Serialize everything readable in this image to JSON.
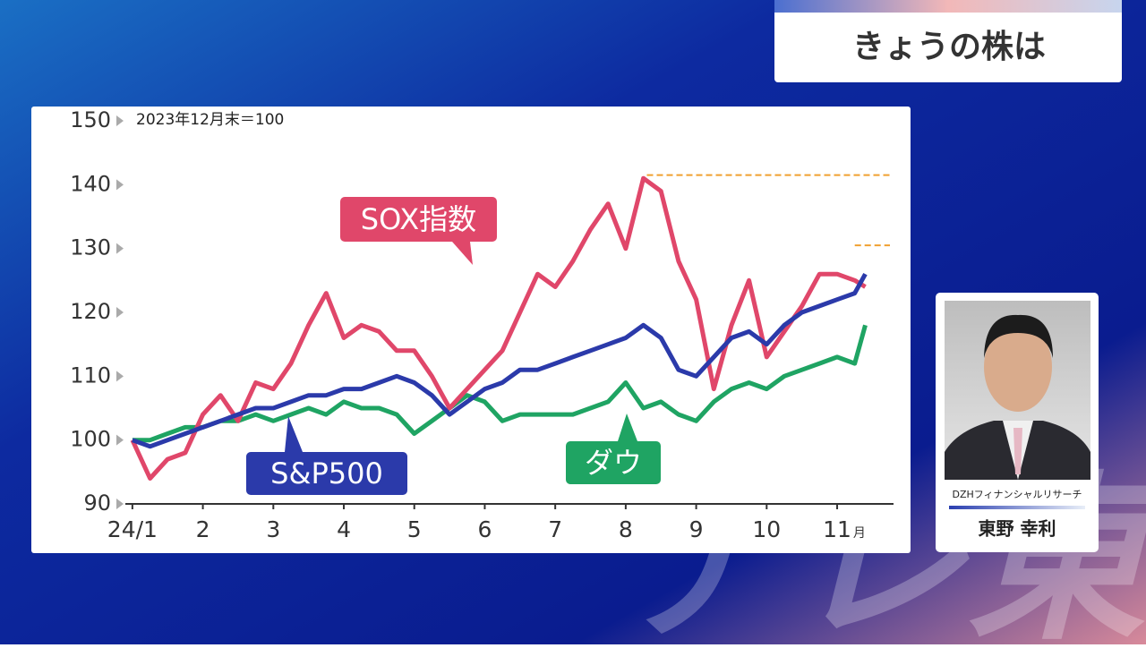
{
  "header": {
    "title": "きょうの株は"
  },
  "commentator": {
    "affiliation": "DZHフィナンシャルリサーチ",
    "name": "東野 幸利"
  },
  "watermark": "テレ東",
  "chart_data": {
    "type": "line",
    "note": "2023年12月末＝100",
    "x_unit": "月",
    "x": [
      0,
      0.25,
      0.5,
      0.75,
      1,
      1.25,
      1.5,
      1.75,
      2,
      2.25,
      2.5,
      2.75,
      3,
      3.25,
      3.5,
      3.75,
      4,
      4.25,
      4.5,
      4.75,
      5,
      5.25,
      5.5,
      5.75,
      6,
      6.25,
      6.5,
      6.75,
      7,
      7.25,
      7.5,
      7.75,
      8,
      8.25,
      8.5,
      8.75,
      9,
      9.25,
      9.5,
      9.75,
      10,
      10.25,
      10.4
    ],
    "series": [
      {
        "name": "SOX指数",
        "color": "#e0476a",
        "values": [
          100,
          94,
          97,
          98,
          104,
          107,
          103,
          109,
          108,
          112,
          118,
          123,
          116,
          118,
          117,
          114,
          114,
          110,
          105,
          108,
          111,
          114,
          120,
          126,
          124,
          128,
          133,
          137,
          130,
          141,
          139,
          128,
          122,
          108,
          118,
          125,
          113,
          117,
          121,
          126,
          126,
          125,
          124
        ]
      },
      {
        "name": "S&P500",
        "color": "#2b3aaa",
        "values": [
          100,
          99,
          100,
          101,
          102,
          103,
          104,
          105,
          105,
          106,
          107,
          107,
          108,
          108,
          109,
          110,
          109,
          107,
          104,
          106,
          108,
          109,
          111,
          111,
          112,
          113,
          114,
          115,
          116,
          118,
          116,
          111,
          110,
          113,
          116,
          117,
          115,
          118,
          120,
          121,
          122,
          123,
          126
        ]
      },
      {
        "name": "ダウ",
        "color": "#1fa463",
        "values": [
          100,
          100,
          101,
          102,
          102,
          103,
          103,
          104,
          103,
          104,
          105,
          104,
          106,
          105,
          105,
          104,
          101,
          103,
          105,
          107,
          106,
          103,
          104,
          104,
          104,
          104,
          105,
          106,
          109,
          105,
          106,
          104,
          103,
          106,
          108,
          109,
          108,
          110,
          111,
          112,
          113,
          112,
          118
        ]
      }
    ],
    "reference_lines": [
      {
        "value": 141.5,
        "x": 7.3,
        "color": "#f0a030"
      },
      {
        "value": 130.5,
        "x": 10.25,
        "color": "#f0a030"
      }
    ],
    "xlim": [
      -0.1,
      10.8
    ],
    "xticks": [
      {
        "value": 0,
        "label": "24/1"
      },
      {
        "value": 1,
        "label": "2"
      },
      {
        "value": 2,
        "label": "3"
      },
      {
        "value": 3,
        "label": "4"
      },
      {
        "value": 4,
        "label": "5"
      },
      {
        "value": 5,
        "label": "6"
      },
      {
        "value": 6,
        "label": "7"
      },
      {
        "value": 7,
        "label": "8"
      },
      {
        "value": 8,
        "label": "9"
      },
      {
        "value": 9,
        "label": "10"
      },
      {
        "value": 10,
        "label": "11"
      }
    ],
    "ylim": [
      90,
      150
    ],
    "yticks": [
      90,
      100,
      110,
      120,
      130,
      140,
      150
    ],
    "grid": false
  }
}
